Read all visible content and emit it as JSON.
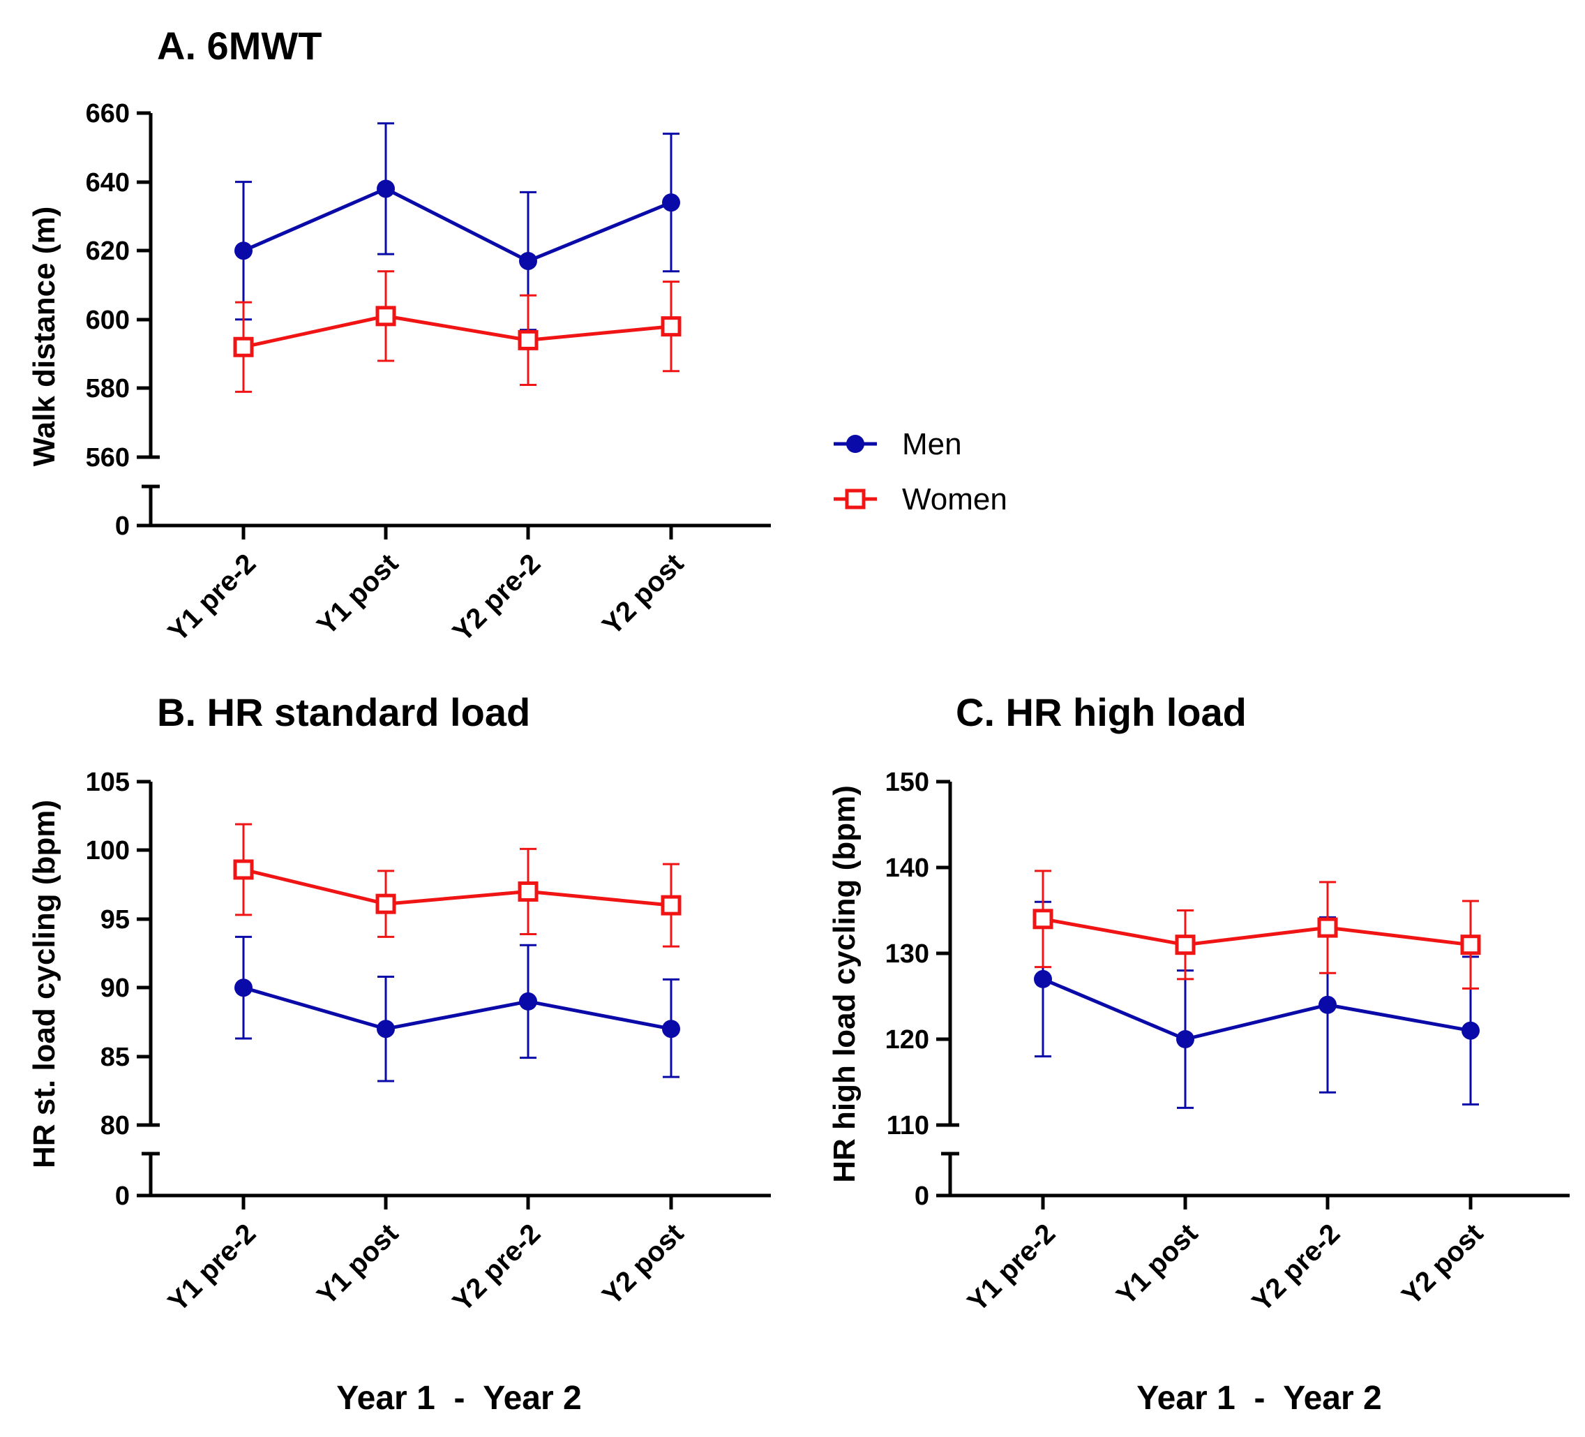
{
  "colors": {
    "men": "#0A0AA8",
    "women": "#F01414",
    "axis": "#000000",
    "background": "#FFFFFF"
  },
  "legend": [
    {
      "key": "men",
      "label": "Men",
      "marker": "filled-circle"
    },
    {
      "key": "women",
      "label": "Women",
      "marker": "open-square"
    }
  ],
  "chart_data": [
    {
      "id": "A",
      "type": "line",
      "title": "A. 6MWT",
      "xlabel": "",
      "ylabel": "Walk distance (m)",
      "categories": [
        "Y1 pre-2",
        "Y1 post",
        "Y2 pre-2",
        "Y2 post"
      ],
      "ylim": [
        560,
        660
      ],
      "yticks": [
        560,
        580,
        600,
        620,
        640,
        660
      ],
      "axis_break": true,
      "below_break_tick": "0",
      "series": [
        {
          "key": "men",
          "name": "Men",
          "values": [
            620,
            638,
            617,
            634
          ],
          "err_low": [
            600,
            619,
            597,
            614
          ],
          "err_high": [
            640,
            657,
            637,
            654
          ]
        },
        {
          "key": "women",
          "name": "Women",
          "values": [
            592,
            601,
            594,
            598
          ],
          "err_low": [
            579,
            588,
            581,
            585
          ],
          "err_high": [
            605,
            614,
            607,
            611
          ]
        }
      ]
    },
    {
      "id": "B",
      "type": "line",
      "title": "B. HR standard load",
      "xlabel": "Year 1  -  Year 2",
      "ylabel": "HR st. load cycling (bpm)",
      "categories": [
        "Y1 pre-2",
        "Y1 post",
        "Y2 pre-2",
        "Y2 post"
      ],
      "ylim": [
        80,
        105
      ],
      "yticks": [
        80,
        85,
        90,
        95,
        100,
        105
      ],
      "axis_break": true,
      "below_break_tick": "0",
      "series": [
        {
          "key": "men",
          "name": "Men",
          "values": [
            90,
            87,
            89,
            87
          ],
          "err_low": [
            86.3,
            83.2,
            84.9,
            83.5
          ],
          "err_high": [
            93.7,
            90.8,
            93.1,
            90.6
          ]
        },
        {
          "key": "women",
          "name": "Women",
          "values": [
            98.6,
            96.1,
            97,
            96
          ],
          "err_low": [
            95.3,
            93.7,
            93.9,
            93
          ],
          "err_high": [
            101.9,
            98.5,
            100.1,
            99
          ]
        }
      ]
    },
    {
      "id": "C",
      "type": "line",
      "title": "C. HR high load",
      "xlabel": "Year 1  -  Year 2",
      "ylabel": "HR high load cycling (bpm)",
      "categories": [
        "Y1 pre-2",
        "Y1 post",
        "Y2 pre-2",
        "Y2 post"
      ],
      "ylim": [
        110,
        150
      ],
      "yticks": [
        110,
        120,
        130,
        140,
        150
      ],
      "axis_break": true,
      "below_break_tick": "0",
      "series": [
        {
          "key": "men",
          "name": "Men",
          "values": [
            127,
            120,
            124,
            121
          ],
          "err_low": [
            118,
            112,
            113.8,
            112.4
          ],
          "err_high": [
            136,
            128,
            134.2,
            129.6
          ]
        },
        {
          "key": "women",
          "name": "Women",
          "values": [
            134,
            131,
            133,
            131
          ],
          "err_low": [
            128.4,
            127,
            127.7,
            125.9
          ],
          "err_high": [
            139.6,
            135,
            138.3,
            136.1
          ]
        }
      ]
    }
  ]
}
